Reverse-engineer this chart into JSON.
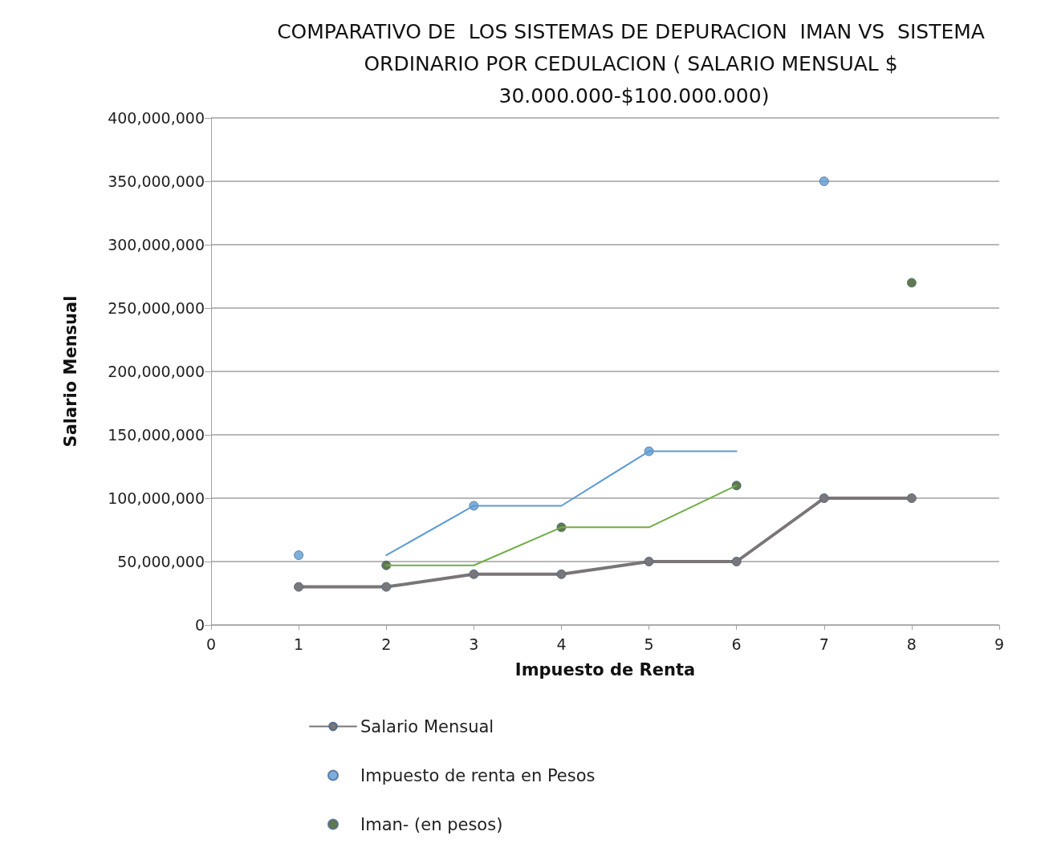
{
  "chart_data": {
    "type": "line",
    "title": "COMPARATIVO DE  LOS SISTEMAS DE DEPURACION  IMAN VS  SISTEMA ORDINARIO POR CEDULACION ( SALARIO MENSUAL $ 30.000.000-$100.000.000)",
    "xlabel": "Impuesto de Renta",
    "ylabel": "Salario Mensual",
    "series": [
      {
        "name": "Salario Mensual",
        "color": "#7a7576",
        "x": [
          1,
          2,
          3,
          4,
          5,
          6,
          7,
          8
        ],
        "values": [
          30000000,
          30000000,
          40000000,
          40000000,
          50000000,
          50000000,
          100000000,
          100000000
        ],
        "marker": "circle"
      },
      {
        "name": "Impuesto de renta en Pesos",
        "type": "scatter",
        "color": "#5b9bd5",
        "x": [
          1,
          3,
          5,
          7
        ],
        "values": [
          55000000,
          94000000,
          137000000,
          350000000
        ],
        "marker": "circle"
      },
      {
        "name": "Iman- (en pesos)",
        "type": "scatter",
        "color": "#375623",
        "x": [
          2,
          4,
          6,
          8
        ],
        "values": [
          47000000,
          77000000,
          110000000,
          270000000
        ],
        "marker": "circle"
      },
      {
        "color": "#5b9bd5",
        "x": [
          2,
          3,
          4,
          5,
          6
        ],
        "values": [
          55000000,
          94000000,
          94000000,
          137000000,
          137000000
        ],
        "marker": "none"
      },
      {
        "color": "#70ad47",
        "x": [
          2,
          3,
          4,
          5,
          6
        ],
        "values": [
          47000000,
          47000000,
          77000000,
          77000000,
          110000000
        ],
        "marker": "none"
      }
    ],
    "xlim": [
      0,
      9
    ],
    "xticks": [
      0,
      1,
      2,
      3,
      4,
      5,
      6,
      7,
      8,
      9
    ],
    "ylim": [
      0,
      400000000
    ],
    "yticks": [
      {
        "value": 0,
        "label": "0"
      },
      {
        "value": 50000000,
        "label": "50,000,000"
      },
      {
        "value": 100000000,
        "label": "100,000,000"
      },
      {
        "value": 150000000,
        "label": "150,000,000"
      },
      {
        "value": 200000000,
        "label": "200,000,000"
      },
      {
        "value": 250000000,
        "label": "250,000,000"
      },
      {
        "value": 300000000,
        "label": "300,000,000"
      },
      {
        "value": 350000000,
        "label": "350,000,000"
      },
      {
        "value": 400000000,
        "label": "400,000,000"
      }
    ],
    "grid": "y",
    "legend": "bottom left"
  }
}
